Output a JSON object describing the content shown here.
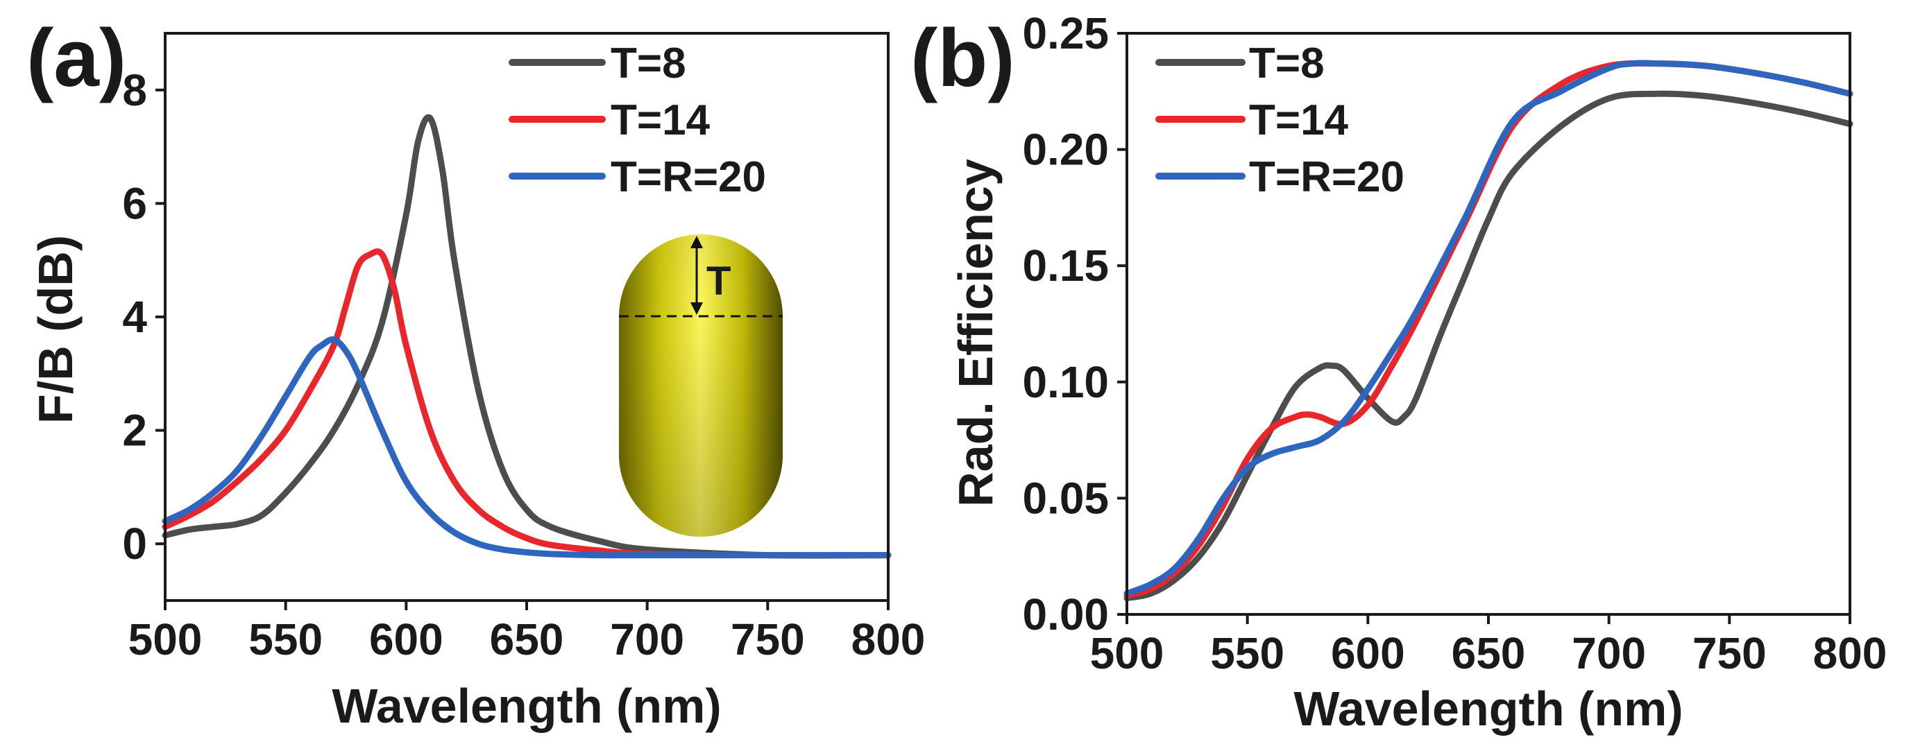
{
  "chart_data": [
    {
      "type": "line",
      "panel_label": "(a)",
      "xlabel": "Wavelength (nm)",
      "ylabel": "F/B (dB)",
      "xlim": [
        500,
        800
      ],
      "ylim": [
        -1,
        9
      ],
      "xticks": [
        "500",
        "550",
        "600",
        "650",
        "700",
        "750",
        "800"
      ],
      "yticks": [
        "0",
        "2",
        "4",
        "6",
        "8"
      ],
      "grid": false,
      "legend_position": "top-right",
      "inset_label": "T",
      "series": [
        {
          "name": "T=8",
          "color": "#4d4d4d",
          "x": [
            500,
            510,
            520,
            530,
            540,
            550,
            560,
            570,
            580,
            590,
            600,
            605,
            610,
            615,
            620,
            630,
            640,
            650,
            660,
            680,
            700,
            750,
            800
          ],
          "y": [
            0.15,
            0.25,
            0.3,
            0.35,
            0.5,
            0.9,
            1.4,
            2.0,
            2.8,
            3.9,
            5.8,
            7.1,
            7.5,
            6.6,
            5.0,
            2.7,
            1.3,
            0.6,
            0.3,
            0.05,
            -0.1,
            -0.2,
            -0.2
          ]
        },
        {
          "name": "T=14",
          "color": "#e8262b",
          "x": [
            500,
            510,
            520,
            530,
            540,
            550,
            560,
            570,
            575,
            580,
            585,
            590,
            595,
            600,
            610,
            620,
            630,
            640,
            650,
            660,
            680,
            700,
            750,
            800
          ],
          "y": [
            0.3,
            0.5,
            0.75,
            1.1,
            1.5,
            2.0,
            2.7,
            3.5,
            4.2,
            4.9,
            5.1,
            5.1,
            4.5,
            3.5,
            2.0,
            1.1,
            0.6,
            0.3,
            0.1,
            -0.02,
            -0.12,
            -0.18,
            -0.2,
            -0.2
          ]
        },
        {
          "name": "T=R=20",
          "color": "#2e66bf",
          "x": [
            500,
            510,
            520,
            530,
            540,
            550,
            560,
            565,
            570,
            575,
            580,
            590,
            600,
            610,
            620,
            630,
            640,
            650,
            660,
            680,
            700,
            750,
            800
          ],
          "y": [
            0.4,
            0.6,
            0.9,
            1.3,
            1.9,
            2.6,
            3.3,
            3.5,
            3.6,
            3.4,
            3.0,
            2.0,
            1.1,
            0.55,
            0.2,
            0.0,
            -0.1,
            -0.15,
            -0.18,
            -0.2,
            -0.2,
            -0.2,
            -0.2
          ]
        }
      ]
    },
    {
      "type": "line",
      "panel_label": "(b)",
      "xlabel": "Wavelength (nm)",
      "ylabel": "Rad. Efficiency",
      "xlim": [
        500,
        800
      ],
      "ylim": [
        0,
        0.25
      ],
      "xticks": [
        "500",
        "550",
        "600",
        "650",
        "700",
        "750",
        "800"
      ],
      "yticks": [
        "0.00",
        "0.05",
        "0.10",
        "0.15",
        "0.20",
        "0.25"
      ],
      "grid": false,
      "legend_position": "top-left",
      "series": [
        {
          "name": "T=8",
          "color": "#4d4d4d",
          "x": [
            500,
            510,
            520,
            530,
            540,
            550,
            560,
            570,
            580,
            585,
            590,
            600,
            610,
            615,
            620,
            630,
            640,
            650,
            660,
            680,
            700,
            720,
            740,
            760,
            780,
            800
          ],
          "y": [
            0.007,
            0.009,
            0.015,
            0.025,
            0.04,
            0.06,
            0.08,
            0.098,
            0.106,
            0.107,
            0.105,
            0.093,
            0.083,
            0.085,
            0.093,
            0.12,
            0.145,
            0.17,
            0.19,
            0.21,
            0.222,
            0.224,
            0.223,
            0.22,
            0.216,
            0.211
          ]
        },
        {
          "name": "T=14",
          "color": "#e8262b",
          "x": [
            500,
            510,
            520,
            530,
            540,
            550,
            560,
            570,
            575,
            580,
            590,
            600,
            610,
            620,
            640,
            660,
            680,
            700,
            720,
            740,
            760,
            780,
            800
          ],
          "y": [
            0.008,
            0.011,
            0.018,
            0.03,
            0.047,
            0.067,
            0.08,
            0.085,
            0.086,
            0.085,
            0.082,
            0.09,
            0.107,
            0.126,
            0.168,
            0.21,
            0.228,
            0.236,
            0.237,
            0.236,
            0.233,
            0.229,
            0.224
          ]
        },
        {
          "name": "T=R=20",
          "color": "#2e66bf",
          "x": [
            500,
            510,
            520,
            530,
            540,
            550,
            560,
            570,
            580,
            590,
            600,
            610,
            620,
            640,
            660,
            680,
            700,
            710,
            720,
            740,
            760,
            780,
            800
          ],
          "y": [
            0.009,
            0.013,
            0.02,
            0.033,
            0.05,
            0.063,
            0.069,
            0.072,
            0.075,
            0.083,
            0.097,
            0.113,
            0.13,
            0.17,
            0.212,
            0.225,
            0.235,
            0.237,
            0.237,
            0.236,
            0.233,
            0.229,
            0.224
          ]
        }
      ]
    }
  ]
}
